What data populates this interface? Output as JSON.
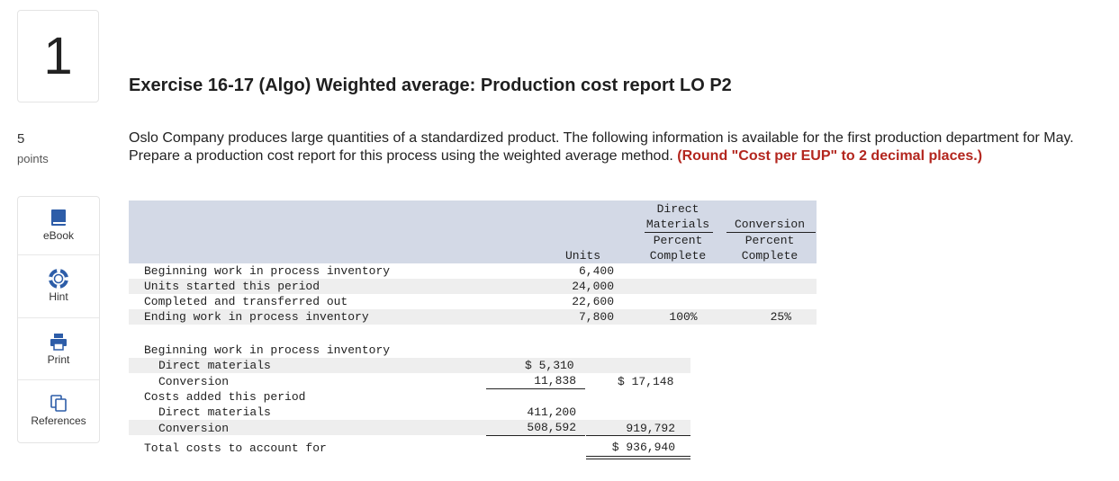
{
  "question": {
    "number": "1",
    "points_value": "5",
    "points_label": "points"
  },
  "sidebar": {
    "tools": [
      {
        "label": "eBook",
        "icon": "book-icon"
      },
      {
        "label": "Hint",
        "icon": "lifebuoy-icon"
      },
      {
        "label": "Print",
        "icon": "printer-icon"
      },
      {
        "label": "References",
        "icon": "copy-icon"
      }
    ]
  },
  "exercise": {
    "title": "Exercise 16-17 (Algo) Weighted average: Production cost report LO P2",
    "prompt": "Oslo Company produces large quantities of a standardized product. The following information is available for the first production department for May. Prepare a production cost report for this process using the weighted average method.",
    "emphasis": "(Round \"Cost per EUP\" to 2 decimal places.)"
  },
  "table": {
    "headers": {
      "units": "Units",
      "dm_line1": "Direct",
      "dm_line2": "Materials",
      "dm_line3": "Percent",
      "dm_line4": "Complete",
      "conv_line1": "Conversion",
      "conv_line2": "Percent",
      "conv_line3": "Complete"
    },
    "unit_rows": [
      {
        "label": "Beginning work in process inventory",
        "units": "6,400",
        "dm": "",
        "conv": ""
      },
      {
        "label": "Units started this period",
        "units": "24,000",
        "dm": "",
        "conv": ""
      },
      {
        "label": "Completed and transferred out",
        "units": "22,600",
        "dm": "",
        "conv": ""
      },
      {
        "label": "Ending work in process inventory",
        "units": "7,800",
        "dm": "100%",
        "conv": "25%"
      }
    ],
    "costs": {
      "beg_label": "Beginning work in process inventory",
      "beg_dm_label": "Direct materials",
      "beg_dm_value": "$ 5,310",
      "beg_conv_label": "Conversion",
      "beg_conv_value": "11,838",
      "beg_total": "$ 17,148",
      "added_label": "Costs added this period",
      "added_dm_label": "Direct materials",
      "added_dm_value": "411,200",
      "added_conv_label": "Conversion",
      "added_conv_value": "508,592",
      "added_total": "919,792",
      "total_label": "Total costs to account for",
      "total_value": "$ 936,940"
    }
  }
}
